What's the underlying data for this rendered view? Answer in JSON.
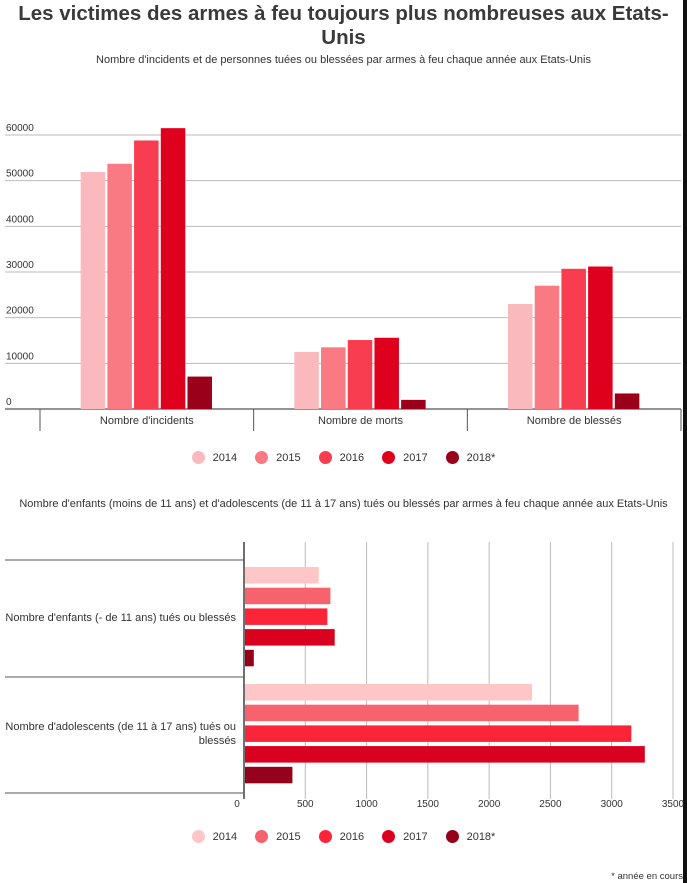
{
  "title": "Les victimes des armes à feu toujours plus nombreuses aux Etats-Unis",
  "legend": [
    {
      "label": "2014",
      "color": "#f9b9bd"
    },
    {
      "label": "2015",
      "color": "#fa7a84"
    },
    {
      "label": "2016",
      "color": "#f73d4f"
    },
    {
      "label": "2017",
      "color": "#df001e"
    },
    {
      "label": "2018*",
      "color": "#9a0019"
    }
  ],
  "legend2_colors": [
    "#ffc6c8",
    "#f7636c",
    "#fb2438",
    "#da0020",
    "#95001a"
  ],
  "footnote": "* année en cours",
  "chart_data": [
    {
      "type": "bar",
      "title": "Nombre d'incidents et de personnes tuées ou blessées par armes à feu chaque année aux Etats-Unis",
      "categories": [
        "Nombre d'incidents",
        "Nombre de morts",
        "Nombre de blessés"
      ],
      "series": [
        {
          "name": "2014",
          "values": [
            51900,
            12500,
            23000
          ]
        },
        {
          "name": "2015",
          "values": [
            53700,
            13500,
            27000
          ]
        },
        {
          "name": "2016",
          "values": [
            58800,
            15100,
            30700
          ]
        },
        {
          "name": "2017",
          "values": [
            61500,
            15600,
            31200
          ]
        },
        {
          "name": "2018*",
          "values": [
            7100,
            2000,
            3400
          ]
        }
      ],
      "yticks": [
        "0",
        "10000",
        "20000",
        "30000",
        "40000",
        "50000",
        "60000"
      ],
      "ylim": [
        0,
        60000
      ],
      "grid": true,
      "legend_position": "bottom"
    },
    {
      "type": "bar",
      "orientation": "horizontal",
      "title": "Nombre d'enfants (moins de 11 ans) et d'adolescents (de 11 à 17 ans) tués ou blessés par armes à feu chaque année aux Etats-Unis",
      "categories": [
        "Nombre d'enfants (- de 11 ans) tués ou blessés",
        "Nombre d'adolescents (de 11 à 17 ans) tués ou blessés"
      ],
      "series": [
        {
          "name": "2014",
          "values": [
            610,
            2350
          ]
        },
        {
          "name": "2015",
          "values": [
            705,
            2730
          ]
        },
        {
          "name": "2016",
          "values": [
            680,
            3160
          ]
        },
        {
          "name": "2017",
          "values": [
            740,
            3270
          ]
        },
        {
          "name": "2018*",
          "values": [
            80,
            395
          ]
        }
      ],
      "xticks": [
        "0",
        "500",
        "1000",
        "1500",
        "2000",
        "2500",
        "3000",
        "3500"
      ],
      "xlim": [
        0,
        3500
      ],
      "grid": true,
      "legend_position": "bottom"
    }
  ]
}
